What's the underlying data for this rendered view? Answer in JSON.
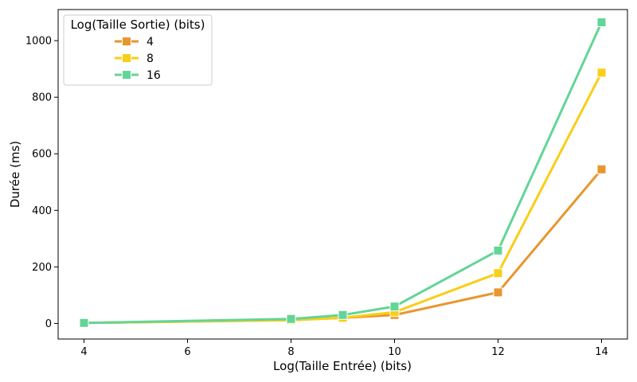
{
  "chart_data": {
    "type": "line",
    "xlabel": "Log(Taille Entrée) (bits)",
    "ylabel": "Durée (ms)",
    "xlim": [
      3.5,
      14.5
    ],
    "ylim": [
      -55,
      1110
    ],
    "xticks": [
      4,
      6,
      8,
      10,
      12,
      14
    ],
    "yticks": [
      0,
      200,
      400,
      600,
      800,
      1000
    ],
    "x": [
      4,
      8,
      9,
      10,
      12,
      14
    ],
    "grid": false,
    "legend": {
      "title": "Log(Taille Sortie) (bits)",
      "placement": "top-left"
    },
    "series": [
      {
        "name": "4",
        "color": "#E8962E",
        "values": [
          2,
          12,
          20,
          30,
          110,
          545
        ]
      },
      {
        "name": "8",
        "color": "#F9CE17",
        "values": [
          2,
          12,
          20,
          40,
          178,
          887
        ]
      },
      {
        "name": "16",
        "color": "#63D597",
        "values": [
          2,
          16,
          30,
          60,
          258,
          1065
        ]
      }
    ]
  }
}
